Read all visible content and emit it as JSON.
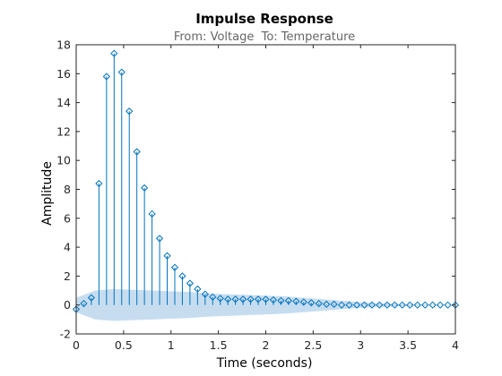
{
  "chart_data": {
    "type": "stem",
    "title": "Impulse Response",
    "subtitle": "From: Voltage  To: Temperature",
    "xlabel": "Time (seconds)",
    "ylabel": "Amplitude",
    "xlim": [
      0,
      4
    ],
    "ylim": [
      -2,
      18
    ],
    "xticks": [
      0,
      0.5,
      1,
      1.5,
      2,
      2.5,
      3,
      3.5,
      4
    ],
    "xtick_labels": [
      "0",
      "0.5",
      "1",
      "1.5",
      "2",
      "2.5",
      "3",
      "3.5",
      "4"
    ],
    "yticks": [
      -2,
      0,
      2,
      4,
      6,
      8,
      10,
      12,
      14,
      16,
      18
    ],
    "ytick_labels": [
      "-2",
      "0",
      "2",
      "4",
      "6",
      "8",
      "10",
      "12",
      "14",
      "16",
      "18"
    ],
    "grid": false,
    "colors": {
      "stem": "#0072BD",
      "band": "#C6DDF0",
      "axes": "#262626"
    },
    "series": [
      {
        "x": [
          0.0,
          0.08,
          0.16,
          0.24,
          0.32,
          0.4,
          0.48,
          0.56,
          0.64,
          0.72,
          0.8,
          0.88,
          0.96,
          1.04,
          1.12,
          1.2,
          1.28,
          1.36,
          1.44,
          1.52,
          1.6,
          1.68,
          1.76,
          1.84,
          1.92,
          2.0,
          2.08,
          2.16,
          2.24,
          2.32,
          2.4,
          2.48,
          2.56,
          2.64,
          2.72,
          2.8,
          2.88,
          2.96,
          3.04,
          3.12,
          3.2,
          3.28,
          3.36,
          3.44,
          3.52,
          3.6,
          3.68,
          3.76,
          3.84,
          3.92,
          4.0
        ],
        "y": [
          -0.3,
          0.1,
          0.5,
          8.4,
          15.8,
          17.4,
          16.1,
          13.4,
          10.6,
          8.1,
          6.3,
          4.6,
          3.4,
          2.6,
          2.0,
          1.5,
          1.1,
          0.75,
          0.55,
          0.45,
          0.4,
          0.4,
          0.4,
          0.4,
          0.4,
          0.4,
          0.35,
          0.3,
          0.3,
          0.25,
          0.2,
          0.15,
          0.1,
          0.05,
          0.05,
          0.0,
          0.0,
          0.0,
          0.0,
          0.0,
          0.0,
          0.0,
          0.0,
          0.0,
          0.0,
          0.0,
          0.0,
          0.0,
          0.0,
          0.0,
          0.0
        ]
      }
    ],
    "confidence_band": {
      "x": [
        0.0,
        0.2,
        0.4,
        0.6,
        0.8,
        1.0,
        1.2,
        1.4,
        1.6,
        1.8,
        2.0,
        2.2,
        2.4,
        2.6,
        2.8,
        3.0,
        3.2,
        3.4,
        3.6,
        3.8,
        4.0
      ],
      "upper": [
        0.5,
        1.0,
        1.1,
        1.05,
        1.0,
        0.95,
        0.9,
        0.8,
        0.75,
        0.7,
        0.65,
        0.6,
        0.5,
        0.4,
        0.3,
        0.2,
        0.12,
        0.08,
        0.05,
        0.03,
        0.02
      ],
      "lower": [
        -0.5,
        -1.0,
        -1.1,
        -1.05,
        -1.0,
        -0.95,
        -0.9,
        -0.8,
        -0.75,
        -0.7,
        -0.65,
        -0.6,
        -0.5,
        -0.4,
        -0.3,
        -0.2,
        -0.12,
        -0.08,
        -0.05,
        -0.03,
        -0.02
      ]
    }
  }
}
